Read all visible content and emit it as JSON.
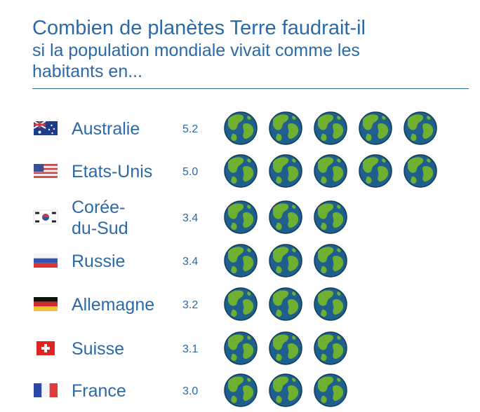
{
  "title": {
    "line1": "Combien de planètes Terre faudrait-il",
    "line2": "si la population mondiale vivait comme les",
    "line3": "habitants en..."
  },
  "colors": {
    "text": "#2b6aa6",
    "globe_ocean": "#1f5f8e",
    "globe_land": "#6fb030",
    "globe_shadow": "#0f3c5a"
  },
  "chart_data": {
    "type": "pictograph",
    "unit_icon": "earth-globe-icon",
    "categories": [
      "Australie",
      "Etats-Unis",
      "Corée-du-Sud",
      "Russie",
      "Allemagne",
      "Suisse",
      "France"
    ],
    "labels": [
      [
        "Australie"
      ],
      [
        "Etats-Unis"
      ],
      [
        "Corée-",
        "du-Sud"
      ],
      [
        "Russie"
      ],
      [
        "Allemagne"
      ],
      [
        "Suisse"
      ],
      [
        "France"
      ]
    ],
    "values": [
      5.2,
      5.0,
      3.4,
      3.4,
      3.2,
      3.1,
      3.0
    ],
    "value_labels": [
      "5.2",
      "5.0",
      "3.4",
      "3.4",
      "3.2",
      "3.1",
      "3.0"
    ],
    "flags": [
      "australia-flag-icon",
      "usa-flag-icon",
      "south-korea-flag-icon",
      "russia-flag-icon",
      "germany-flag-icon",
      "switzerland-flag-icon",
      "france-flag-icon"
    ]
  }
}
